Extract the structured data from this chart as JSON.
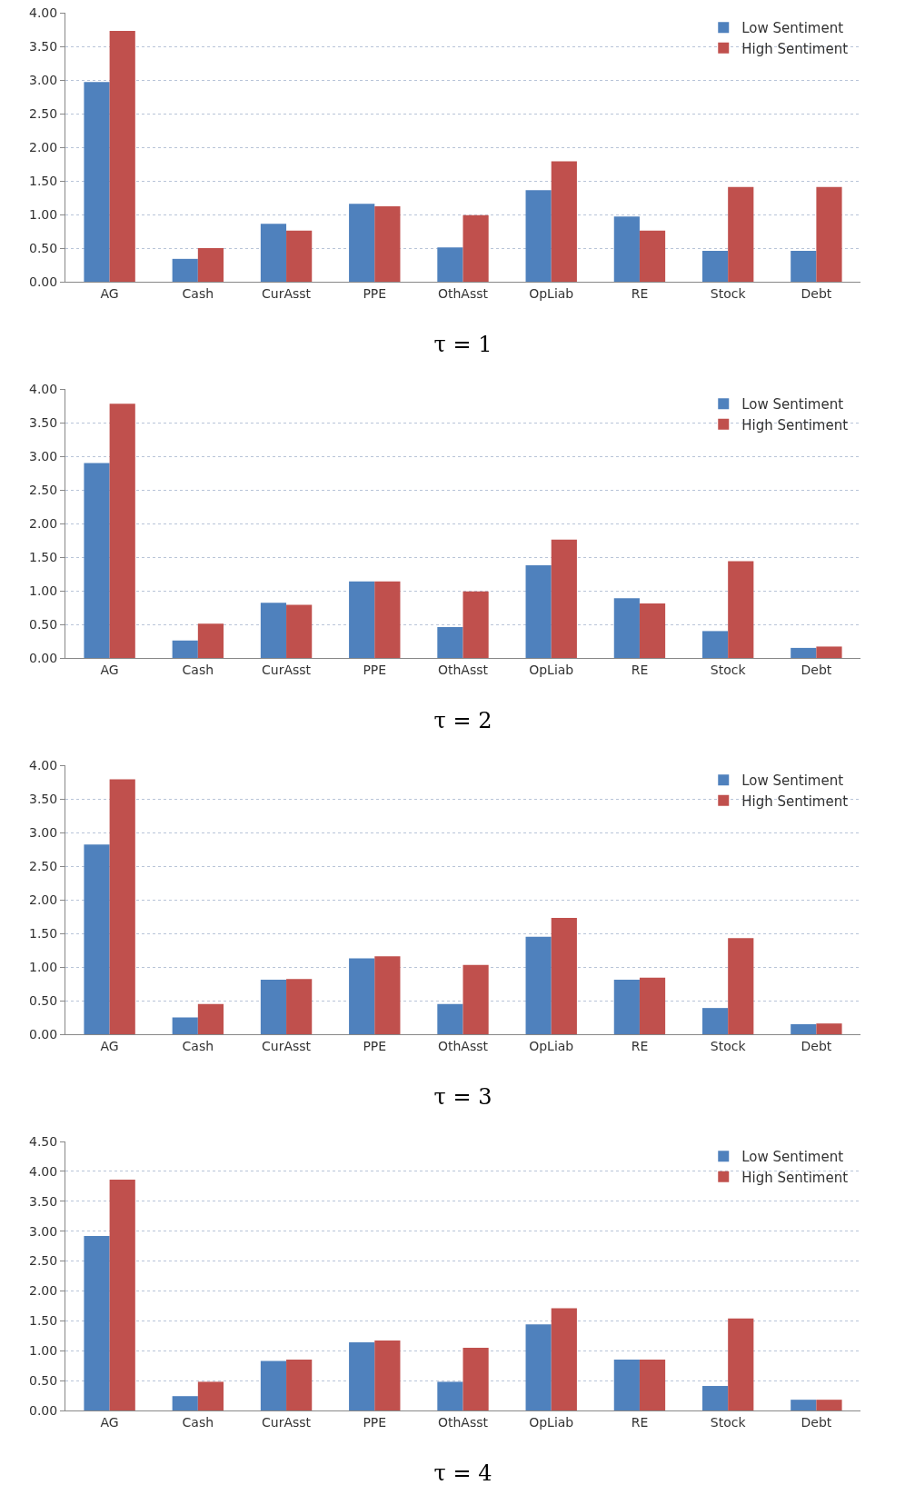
{
  "chart_data": [
    {
      "type": "bar",
      "xlabel": "τ = 1",
      "categories": [
        "AG",
        "Cash",
        "CurAsst",
        "PPE",
        "OthAsst",
        "OpLiab",
        "RE",
        "Stock",
        "Debt"
      ],
      "series": [
        {
          "name": "Low Sentiment",
          "color": "#4f81bd",
          "values": [
            2.97,
            0.34,
            0.86,
            1.16,
            0.51,
            1.36,
            0.97,
            0.46,
            0.46
          ]
        },
        {
          "name": "High Sentiment",
          "color": "#c0504d",
          "values": [
            3.73,
            0.5,
            0.76,
            1.12,
            0.99,
            1.79,
            0.76,
            1.41,
            1.41
          ]
        }
      ],
      "ylim": [
        0,
        4
      ],
      "yticks": [
        {
          "value": 0,
          "label": "0.00"
        },
        {
          "value": 0.5,
          "label": "0.50"
        },
        {
          "value": 1,
          "label": "1.00"
        },
        {
          "value": 1.5,
          "label": "1.50"
        },
        {
          "value": 2,
          "label": "2.00"
        },
        {
          "value": 2.5,
          "label": "2.50"
        },
        {
          "value": 3,
          "label": "3.00"
        },
        {
          "value": 3.5,
          "label": "3.50"
        },
        {
          "value": 4,
          "label": "4.00"
        }
      ],
      "grid": "y",
      "legend": "top right"
    },
    {
      "type": "bar",
      "xlabel": "τ = 2",
      "categories": [
        "AG",
        "Cash",
        "CurAsst",
        "PPE",
        "OthAsst",
        "OpLiab",
        "RE",
        "Stock",
        "Debt"
      ],
      "series": [
        {
          "name": "Low Sentiment",
          "color": "#4f81bd",
          "values": [
            2.9,
            0.26,
            0.82,
            1.14,
            0.46,
            1.38,
            0.89,
            0.4,
            0.15
          ]
        },
        {
          "name": "High Sentiment",
          "color": "#c0504d",
          "values": [
            3.78,
            0.51,
            0.79,
            1.14,
            0.99,
            1.76,
            0.81,
            1.44,
            0.17
          ]
        }
      ],
      "ylim": [
        0,
        4
      ],
      "yticks": [
        {
          "value": 0,
          "label": "0.00"
        },
        {
          "value": 0.5,
          "label": "0.50"
        },
        {
          "value": 1,
          "label": "1.00"
        },
        {
          "value": 1.5,
          "label": "1.50"
        },
        {
          "value": 2,
          "label": "2.00"
        },
        {
          "value": 2.5,
          "label": "2.50"
        },
        {
          "value": 3,
          "label": "3.00"
        },
        {
          "value": 3.5,
          "label": "3.50"
        },
        {
          "value": 4,
          "label": "4.00"
        }
      ],
      "grid": "y",
      "legend": "top right"
    },
    {
      "type": "bar",
      "xlabel": "τ = 3",
      "categories": [
        "AG",
        "Cash",
        "CurAsst",
        "PPE",
        "OthAsst",
        "OpLiab",
        "RE",
        "Stock",
        "Debt"
      ],
      "series": [
        {
          "name": "Low Sentiment",
          "color": "#4f81bd",
          "values": [
            2.82,
            0.25,
            0.81,
            1.13,
            0.45,
            1.45,
            0.81,
            0.39,
            0.15
          ]
        },
        {
          "name": "High Sentiment",
          "color": "#c0504d",
          "values": [
            3.79,
            0.45,
            0.82,
            1.16,
            1.03,
            1.73,
            0.84,
            1.43,
            0.16
          ]
        }
      ],
      "ylim": [
        0,
        4
      ],
      "yticks": [
        {
          "value": 0,
          "label": "0.00"
        },
        {
          "value": 0.5,
          "label": "0.50"
        },
        {
          "value": 1,
          "label": "1.00"
        },
        {
          "value": 1.5,
          "label": "1.50"
        },
        {
          "value": 2,
          "label": "2.00"
        },
        {
          "value": 2.5,
          "label": "2.50"
        },
        {
          "value": 3,
          "label": "3.00"
        },
        {
          "value": 3.5,
          "label": "3.50"
        },
        {
          "value": 4,
          "label": "4.00"
        }
      ],
      "grid": "y",
      "legend": "top right"
    },
    {
      "type": "bar",
      "xlabel": "τ = 4",
      "categories": [
        "AG",
        "Cash",
        "CurAsst",
        "PPE",
        "OthAsst",
        "OpLiab",
        "RE",
        "Stock",
        "Debt"
      ],
      "series": [
        {
          "name": "Low Sentiment",
          "color": "#4f81bd",
          "values": [
            2.92,
            0.24,
            0.83,
            1.14,
            0.48,
            1.44,
            0.85,
            0.41,
            0.18
          ]
        },
        {
          "name": "High Sentiment",
          "color": "#c0504d",
          "values": [
            3.86,
            0.48,
            0.85,
            1.17,
            1.05,
            1.71,
            0.85,
            1.54,
            0.18
          ]
        }
      ],
      "ylim": [
        0,
        4.5
      ],
      "yticks": [
        {
          "value": 0,
          "label": "0.00"
        },
        {
          "value": 0.5,
          "label": "0.50"
        },
        {
          "value": 1,
          "label": "1.00"
        },
        {
          "value": 1.5,
          "label": "1.50"
        },
        {
          "value": 2,
          "label": "2.00"
        },
        {
          "value": 2.5,
          "label": "2.50"
        },
        {
          "value": 3,
          "label": "3.00"
        },
        {
          "value": 3.5,
          "label": "3.50"
        },
        {
          "value": 4,
          "label": "4.00"
        },
        {
          "value": 4.5,
          "label": "4.50"
        }
      ],
      "grid": "y",
      "legend": "top right"
    }
  ]
}
